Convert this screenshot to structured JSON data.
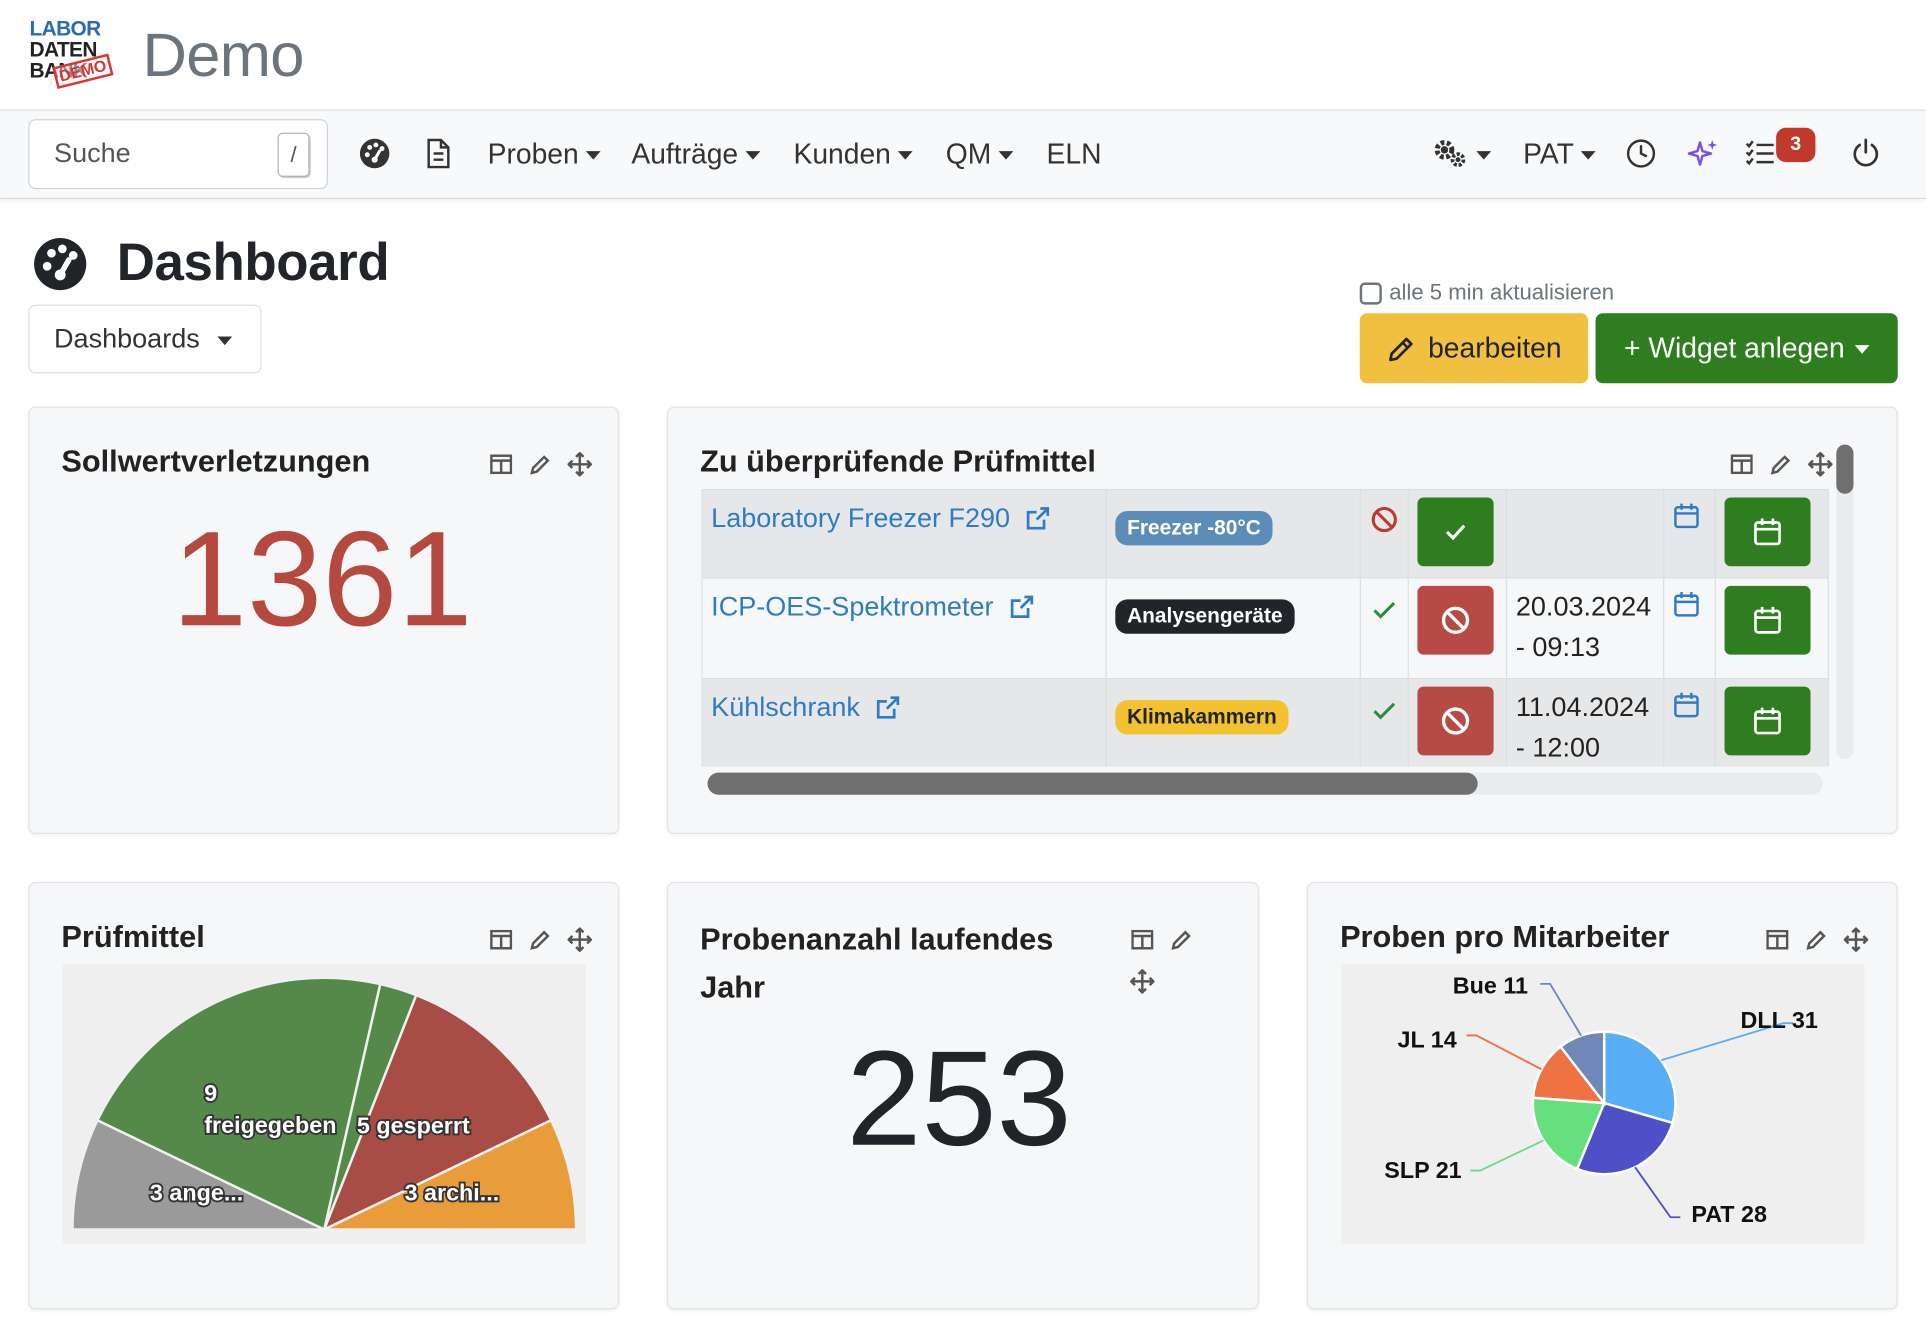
{
  "brand": {
    "logo_line1": "LABOR",
    "logo_line2": "DATEN",
    "logo_line3": "BANK",
    "logo_stamp": "DEMO",
    "title": "Demo"
  },
  "navbar": {
    "search_placeholder": "Suche",
    "search_shortcut": "/",
    "menu": [
      {
        "label": "Proben"
      },
      {
        "label": "Aufträge"
      },
      {
        "label": "Kunden"
      },
      {
        "label": "QM"
      },
      {
        "label": "ELN"
      }
    ],
    "user_label": "PAT",
    "tasks_badge": "3",
    "icons": [
      "dashboard-icon",
      "document-icon",
      "settings-icon",
      "history-icon",
      "ai-sparkle-icon",
      "tasks-icon",
      "power-icon"
    ],
    "accent_ai": "#7b4ee6"
  },
  "page": {
    "title": "Dashboard",
    "dashboards_label": "Dashboards",
    "auto_refresh_label": "alle 5 min aktualisieren",
    "edit_label": "bearbeiten",
    "add_widget_label": "+ Widget anlegen"
  },
  "widgets": {
    "setpoint": {
      "title": "Sollwertverletzungen",
      "value": "1361",
      "color": "#b5483f"
    },
    "equipment": {
      "title": "Zu überprüfende Prüfmittel",
      "rows": [
        {
          "name": "Laboratory Freezer F290",
          "category": "Freezer -80°C",
          "category_bg": "#5b8db8",
          "category_fg": "#ffffff",
          "status": "blocked",
          "action": "approve",
          "date1": "",
          "date2": ""
        },
        {
          "name": "ICP-OES-Spektrometer",
          "category": "Analysengeräte",
          "category_bg": "#212529",
          "category_fg": "#ffffff",
          "status": "ok",
          "action": "block",
          "date1": "20.03.2024",
          "date2": "- 09:13"
        },
        {
          "name": "Kühlschrank",
          "category": "Klimakammern",
          "category_bg": "#f2c230",
          "category_fg": "#212529",
          "status": "ok",
          "action": "block",
          "date1": "11.04.2024",
          "date2": "- 12:00"
        }
      ],
      "horizontal_scroll_fraction": 0.69
    },
    "pruefmittel": {
      "title": "Prüfmittel",
      "chart_data": {
        "type": "pie",
        "layout": "half-donut",
        "slices": [
          {
            "label": "3 ange...",
            "value": 3,
            "color": "#9a9a9a"
          },
          {
            "label": "9 freigegeben",
            "value": 9,
            "color": "#55894a"
          },
          {
            "label": "",
            "value": 1,
            "color": "#55894a"
          },
          {
            "label": "5 gesperrt",
            "value": 5,
            "color": "#a84d45"
          },
          {
            "label": "3 archi...",
            "value": 3,
            "color": "#e89c3a"
          }
        ]
      }
    },
    "sample_count": {
      "title_line1": "Probenanzahl laufendes",
      "title_line2": "Jahr",
      "value": "253"
    },
    "per_employee": {
      "title": "Proben pro Mitarbeiter",
      "chart_data": {
        "type": "pie",
        "slices": [
          {
            "label": "DLL 31",
            "name": "DLL",
            "value": 31,
            "color": "#57aef4"
          },
          {
            "label": "PAT 28",
            "name": "PAT",
            "value": 28,
            "color": "#4f4fc7"
          },
          {
            "label": "SLP 21",
            "name": "SLP",
            "value": 21,
            "color": "#66e07e"
          },
          {
            "label": "JL 14",
            "name": "JL",
            "value": 14,
            "color": "#ee7242"
          },
          {
            "label": "Bue 11",
            "name": "Bue",
            "value": 11,
            "color": "#6f88b8"
          }
        ]
      }
    }
  }
}
